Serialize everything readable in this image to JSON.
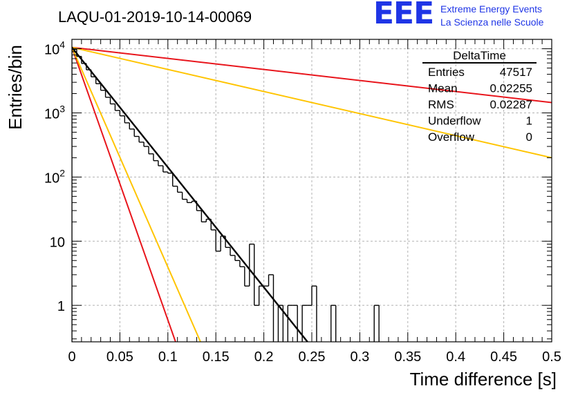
{
  "page": {
    "title": "LAQU-01-2019-10-14-00069",
    "logo": {
      "mark": "EEE",
      "line1": "Extreme Energy Events",
      "line2": "La Scienza nelle Scuole",
      "color": "#1f35e6"
    }
  },
  "stats_box": {
    "name": "DeltaTime",
    "rows": [
      {
        "label": "Entries",
        "value": "47517"
      },
      {
        "label": "Mean",
        "value": "0.02255"
      },
      {
        "label": "RMS",
        "value": "0.02287"
      },
      {
        "label": "Underflow",
        "value": "1"
      },
      {
        "label": "Overflow",
        "value": "0"
      }
    ]
  },
  "chart_data": {
    "type": "histogram",
    "title": "LAQU-01-2019-10-14-00069",
    "xlabel": "Time difference [s]",
    "ylabel": "Entries/bin",
    "xlim": [
      0,
      0.5
    ],
    "ylim": [
      0.27,
      14000
    ],
    "yscale": "log",
    "grid": true,
    "x_ticks": [
      {
        "value": 0,
        "label": "0"
      },
      {
        "value": 0.05,
        "label": "0.05"
      },
      {
        "value": 0.1,
        "label": "0.1"
      },
      {
        "value": 0.15,
        "label": "0.15"
      },
      {
        "value": 0.2,
        "label": "0.2"
      },
      {
        "value": 0.25,
        "label": "0.25"
      },
      {
        "value": 0.3,
        "label": "0.3"
      },
      {
        "value": 0.35,
        "label": "0.35"
      },
      {
        "value": 0.4,
        "label": "0.4"
      },
      {
        "value": 0.45,
        "label": "0.45"
      },
      {
        "value": 0.5,
        "label": "0.5"
      }
    ],
    "y_ticks": [
      {
        "value": 1,
        "base": "1",
        "exp": ""
      },
      {
        "value": 10,
        "base": "10",
        "exp": ""
      },
      {
        "value": 100,
        "base": "10",
        "exp": "2"
      },
      {
        "value": 1000,
        "base": "10",
        "exp": "3"
      },
      {
        "value": 10000,
        "base": "10",
        "exp": "4"
      }
    ],
    "bin_width": 0.005,
    "histogram": {
      "name": "DeltaTime",
      "color": "#000000",
      "bins": [
        {
          "x": 0.0,
          "y": 9800
        },
        {
          "x": 0.005,
          "y": 7600
        },
        {
          "x": 0.01,
          "y": 5900
        },
        {
          "x": 0.015,
          "y": 4700
        },
        {
          "x": 0.02,
          "y": 3650
        },
        {
          "x": 0.025,
          "y": 2850
        },
        {
          "x": 0.03,
          "y": 2250
        },
        {
          "x": 0.035,
          "y": 1750
        },
        {
          "x": 0.04,
          "y": 1380
        },
        {
          "x": 0.045,
          "y": 1090
        },
        {
          "x": 0.05,
          "y": 900
        },
        {
          "x": 0.055,
          "y": 700
        },
        {
          "x": 0.06,
          "y": 560
        },
        {
          "x": 0.065,
          "y": 430
        },
        {
          "x": 0.07,
          "y": 350
        },
        {
          "x": 0.075,
          "y": 300
        },
        {
          "x": 0.08,
          "y": 230
        },
        {
          "x": 0.085,
          "y": 180
        },
        {
          "x": 0.09,
          "y": 150
        },
        {
          "x": 0.095,
          "y": 120
        },
        {
          "x": 0.1,
          "y": 115
        },
        {
          "x": 0.105,
          "y": 72
        },
        {
          "x": 0.11,
          "y": 58
        },
        {
          "x": 0.115,
          "y": 45
        },
        {
          "x": 0.12,
          "y": 40
        },
        {
          "x": 0.125,
          "y": 42
        },
        {
          "x": 0.13,
          "y": 30
        },
        {
          "x": 0.135,
          "y": 20
        },
        {
          "x": 0.14,
          "y": 22
        },
        {
          "x": 0.145,
          "y": 15
        },
        {
          "x": 0.15,
          "y": 7
        },
        {
          "x": 0.155,
          "y": 12
        },
        {
          "x": 0.16,
          "y": 8
        },
        {
          "x": 0.165,
          "y": 6
        },
        {
          "x": 0.17,
          "y": 5
        },
        {
          "x": 0.175,
          "y": 4
        },
        {
          "x": 0.18,
          "y": 2
        },
        {
          "x": 0.185,
          "y": 9
        },
        {
          "x": 0.19,
          "y": 1
        },
        {
          "x": 0.195,
          "y": 2
        },
        {
          "x": 0.2,
          "y": 2
        },
        {
          "x": 0.205,
          "y": 3
        },
        {
          "x": 0.21,
          "y": 0
        },
        {
          "x": 0.215,
          "y": 1
        },
        {
          "x": 0.22,
          "y": 0
        },
        {
          "x": 0.225,
          "y": 1
        },
        {
          "x": 0.23,
          "y": 1
        },
        {
          "x": 0.235,
          "y": 0
        },
        {
          "x": 0.24,
          "y": 1
        },
        {
          "x": 0.245,
          "y": 1
        },
        {
          "x": 0.25,
          "y": 2
        },
        {
          "x": 0.255,
          "y": 0
        },
        {
          "x": 0.26,
          "y": 0
        },
        {
          "x": 0.265,
          "y": 0
        },
        {
          "x": 0.27,
          "y": 1
        },
        {
          "x": 0.275,
          "y": 0
        },
        {
          "x": 0.28,
          "y": 0
        },
        {
          "x": 0.285,
          "y": 0
        },
        {
          "x": 0.29,
          "y": 0
        },
        {
          "x": 0.295,
          "y": 0
        },
        {
          "x": 0.3,
          "y": 0
        },
        {
          "x": 0.305,
          "y": 0
        },
        {
          "x": 0.31,
          "y": 0
        },
        {
          "x": 0.315,
          "y": 1
        }
      ]
    },
    "fit_lines": [
      {
        "name": "red-shallow",
        "color": "#e8141b",
        "x": [
          0,
          0.5
        ],
        "y": [
          10500,
          1450
        ]
      },
      {
        "name": "orange-shallow",
        "color": "#ffc400",
        "x": [
          0,
          0.5
        ],
        "y": [
          10500,
          200
        ]
      },
      {
        "name": "red-steep",
        "color": "#e8141b",
        "x": [
          0,
          0.108
        ],
        "y": [
          10500,
          0.27
        ]
      },
      {
        "name": "orange-steep",
        "color": "#ffc400",
        "x": [
          0,
          0.134
        ],
        "y": [
          10500,
          0.27
        ]
      },
      {
        "name": "black-fit",
        "color": "#000000",
        "x": [
          0,
          0.2455
        ],
        "y": [
          10500,
          0.27
        ]
      }
    ]
  }
}
